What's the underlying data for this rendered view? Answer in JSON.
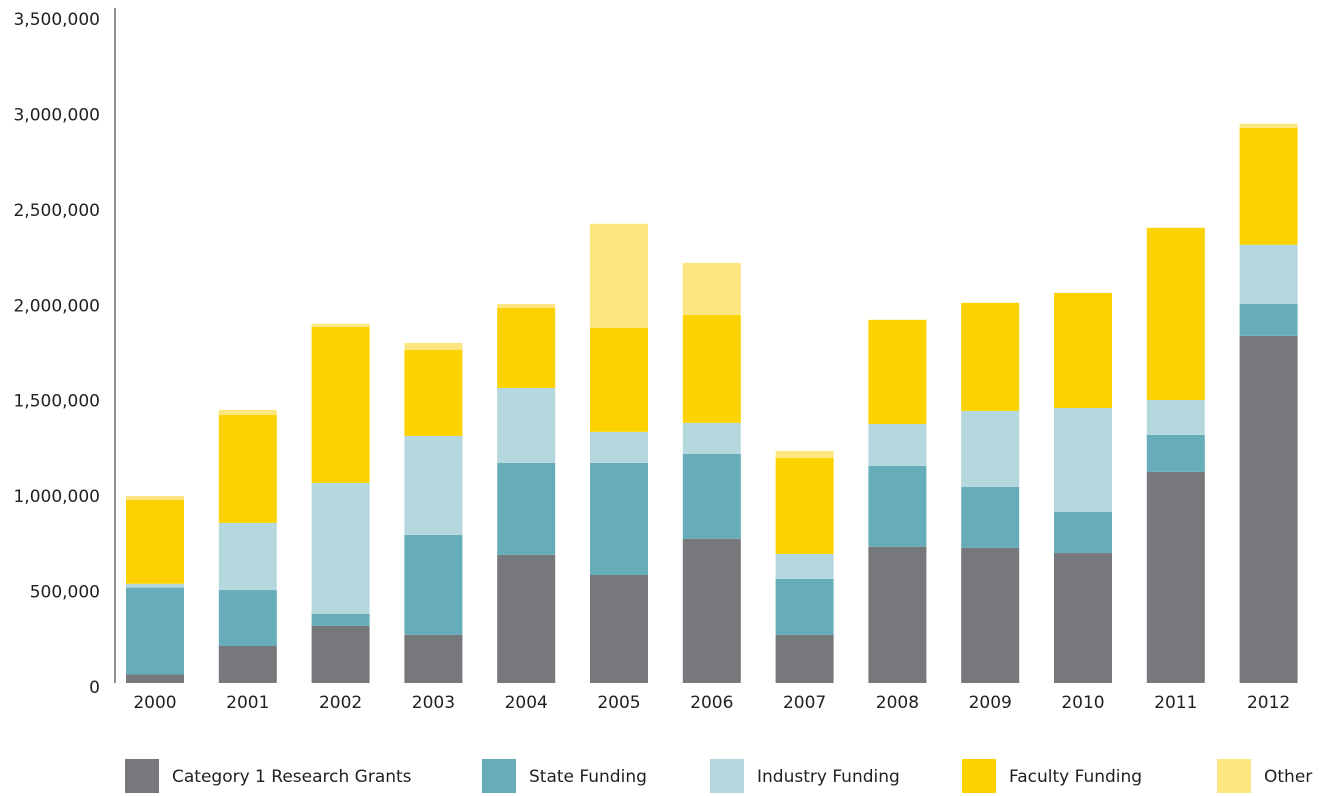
{
  "chart_data": {
    "type": "stacked_bar",
    "categories": [
      "2000",
      "2001",
      "2002",
      "2003",
      "2004",
      "2005",
      "2006",
      "2007",
      "2008",
      "2009",
      "2010",
      "2011",
      "2012"
    ],
    "series": [
      {
        "name": "Category 1 Research Grants",
        "color": "#77787b",
        "values": [
          45000,
          194000,
          299000,
          252000,
          671000,
          566000,
          755000,
          252000,
          713000,
          708000,
          681000,
          1106000,
          1819000
        ]
      },
      {
        "name": "State Funding",
        "color": "#67adb9",
        "values": [
          455000,
          293000,
          63000,
          524000,
          482000,
          587000,
          445000,
          293000,
          424000,
          319000,
          215000,
          194000,
          167000
        ]
      },
      {
        "name": "Industry Funding",
        "color": "#b4d8dd",
        "values": [
          20000,
          352000,
          686000,
          519000,
          393000,
          163000,
          163000,
          131000,
          220000,
          399000,
          545000,
          183000,
          310000
        ]
      },
      {
        "name": "Faculty Funding",
        "color": "#fcd200",
        "values": [
          440000,
          566000,
          818000,
          450000,
          419000,
          545000,
          566000,
          503000,
          546000,
          566000,
          603000,
          902000,
          613000
        ]
      },
      {
        "name": "Other",
        "color": "#fde680",
        "values": [
          20000,
          26000,
          16000,
          37000,
          21000,
          545000,
          272000,
          37000,
          0,
          0,
          0,
          0,
          21000
        ]
      }
    ],
    "ylim": [
      0,
      3500000
    ],
    "yticks": [
      0,
      {
        "value": 500000,
        "label": "500,000"
      },
      {
        "value": 1000000,
        "label": "1,000,000"
      },
      {
        "value": 1500000,
        "label": "1,500,000"
      },
      {
        "value": 2000000,
        "label": "2,000,000"
      },
      {
        "value": 2500000,
        "label": "2,500,000"
      },
      {
        "value": 3000000,
        "label": "3,000,000"
      },
      {
        "value": 3500000,
        "label": "3,500,000"
      }
    ],
    "grid": false
  }
}
